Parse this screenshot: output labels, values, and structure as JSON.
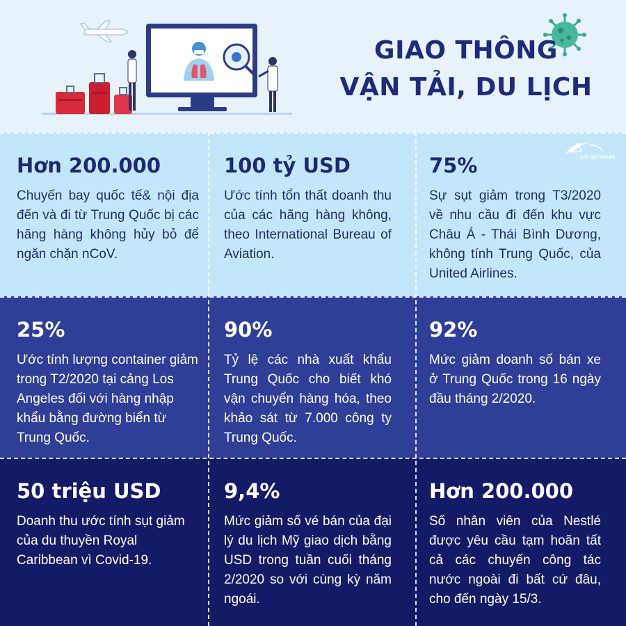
{
  "header": {
    "title_line1": "GIAO THÔNG",
    "title_line2": "VẬN TẢI, DU LỊCH"
  },
  "logo": {
    "text": "ATP SOFTWARE"
  },
  "colors": {
    "title": "#1f2a7a",
    "row1_bg": "#c4e6fb",
    "row2_bg": "#2f3f97",
    "row3_bg": "#141b66"
  },
  "cells": [
    {
      "stat": "Hơn 200.000",
      "desc": "Chuyến bay quốc tế& nội địa đến và đi từ Trung Quốc bị các hãng hàng không hủy bỏ để ngăn chặn nCoV."
    },
    {
      "stat": "100 tỷ USD",
      "desc": "Ước tính tổn thất doanh thu của các hãng hàng không, theo International Bureau of Aviation."
    },
    {
      "stat": "75%",
      "desc": "Sự sụt giảm trong T3/2020 về nhu cầu đi đến khu vực Châu Á - Thái Bình Dương, không tính Trung Quốc, của United Airlines."
    },
    {
      "stat": "25%",
      "desc": "Ước tính lượng container giảm trong T2/2020 tại cảng Los Angeles đối với hàng nhập khẩu bằng đường biển từ Trung Quốc."
    },
    {
      "stat": "90%",
      "desc": "Tỷ lệ các nhà xuất khẩu Trung Quốc cho biết khó vận chuyển hàng hóa, theo khảo sát từ 7.000 công ty Trung Quốc."
    },
    {
      "stat": "92%",
      "desc": "Mức giảm doanh số bán xe ở Trung Quốc trong 16 ngày đầu tháng 2/2020."
    },
    {
      "stat": "50 triệu USD",
      "desc": "Doanh thu ước tính sụt giảm của du thuyền Royal Caribbean vì Covid-19."
    },
    {
      "stat": "9,4%",
      "desc": "Mức giảm số vé bán của đại lý du lịch Mỹ giao dịch bằng USD trong tuần cuối tháng 2/2020 so với cùng kỳ năm ngoái."
    },
    {
      "stat": "Hơn 200.000",
      "desc": "Số nhân viên của Nestlé được yêu cầu tạm hoãn tất cả các chuyến công tác nước ngoài đi bất cứ đâu, cho đến ngày 15/3."
    }
  ]
}
